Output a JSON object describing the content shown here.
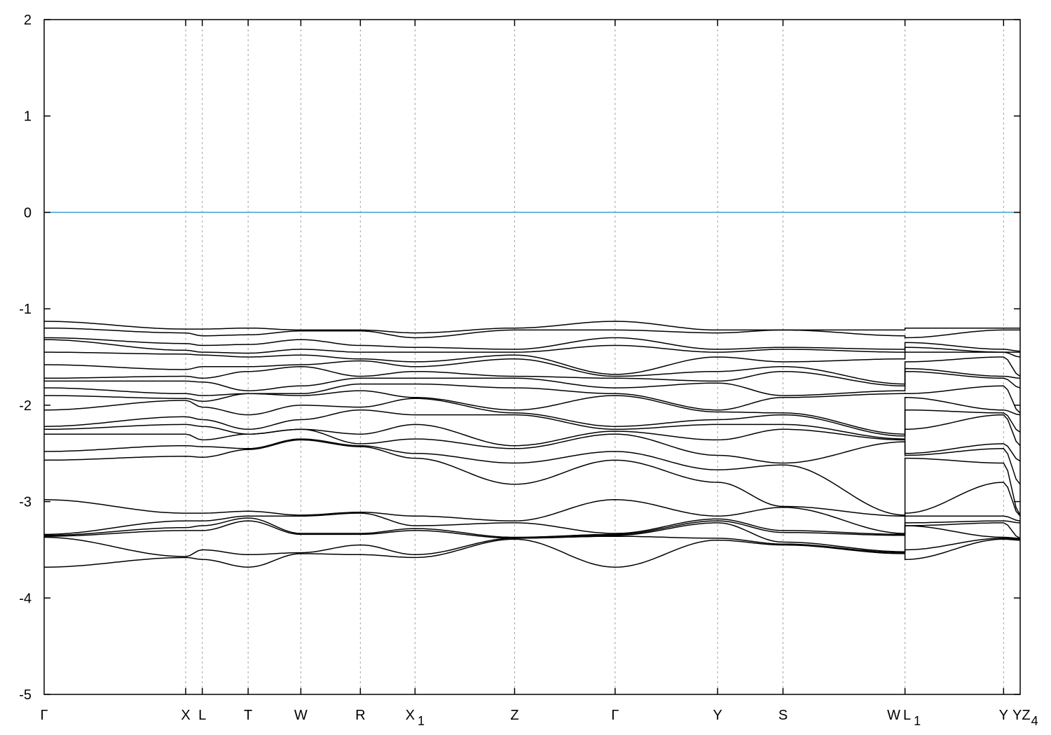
{
  "chart_data": {
    "type": "line",
    "title": "",
    "xlabel": "",
    "ylabel": "",
    "ylim": [
      -5,
      2
    ],
    "yticks": [
      -5,
      -4,
      -3,
      -2,
      -1,
      0,
      1,
      2
    ],
    "xlim": [
      0,
      1
    ],
    "grid": "vertical dashed lines at high-symmetry points",
    "legend": "none",
    "colors": {
      "bands": "#000000",
      "fermi_line": "#3a9fd6",
      "grid": "#a0a0a0"
    },
    "reference_line": {
      "y": 0
    },
    "high_symmetry_points": [
      {
        "k": 0.0,
        "label": "Γ",
        "sub": ""
      },
      {
        "k": 0.145,
        "label": "X",
        "sub": ""
      },
      {
        "k": 0.162,
        "label": "L",
        "sub": ""
      },
      {
        "k": 0.209,
        "label": "T",
        "sub": ""
      },
      {
        "k": 0.263,
        "label": "W",
        "sub": ""
      },
      {
        "k": 0.324,
        "label": "R",
        "sub": ""
      },
      {
        "k": 0.38,
        "label": "X",
        "sub": "1"
      },
      {
        "k": 0.482,
        "label": "Z",
        "sub": ""
      },
      {
        "k": 0.585,
        "label": "Γ",
        "sub": ""
      },
      {
        "k": 0.69,
        "label": "Y",
        "sub": ""
      },
      {
        "k": 0.757,
        "label": "S",
        "sub": ""
      },
      {
        "k": 0.882,
        "label": "W",
        "sub": ""
      },
      {
        "k": 0.882,
        "label": "L",
        "sub": "1"
      },
      {
        "k": 0.983,
        "label": "Y",
        "sub": ""
      },
      {
        "k": 1.0,
        "label": "YZ",
        "sub": "4"
      }
    ],
    "band_energies_at_points": [
      [
        -1.13,
        -1.2,
        -1.3,
        -1.32,
        -1.45,
        -1.58,
        -1.72,
        -1.75,
        -1.82,
        -1.9,
        -2.05,
        -2.22,
        -2.25,
        -2.3,
        -2.48,
        -2.57,
        -2.98,
        -3.34,
        -3.35,
        -3.36,
        -3.37,
        -3.68
      ],
      [
        -1.21,
        -1.25,
        -1.36,
        -1.43,
        -1.47,
        -1.63,
        -1.7,
        -1.75,
        -1.88,
        -1.93,
        -1.95,
        -2.12,
        -2.2,
        -2.3,
        -2.42,
        -2.53,
        -3.12,
        -3.2,
        -3.27,
        -3.3,
        -3.57,
        -3.58
      ],
      [
        -1.21,
        -1.28,
        -1.38,
        -1.45,
        -1.48,
        -1.6,
        -1.72,
        -1.76,
        -1.9,
        -1.96,
        -2.02,
        -2.15,
        -2.22,
        -2.36,
        -2.43,
        -2.54,
        -3.12,
        -3.2,
        -3.25,
        -3.3,
        -3.5,
        -3.6
      ],
      [
        -1.2,
        -1.27,
        -1.37,
        -1.46,
        -1.5,
        -1.6,
        -1.65,
        -1.85,
        -1.88,
        -1.88,
        -2.1,
        -2.25,
        -2.3,
        -2.3,
        -2.45,
        -2.46,
        -3.1,
        -3.15,
        -3.17,
        -3.2,
        -3.55,
        -3.68
      ],
      [
        -1.22,
        -1.23,
        -1.32,
        -1.42,
        -1.48,
        -1.58,
        -1.6,
        -1.8,
        -1.88,
        -1.9,
        -2.0,
        -2.15,
        -2.25,
        -2.25,
        -2.35,
        -2.36,
        -3.14,
        -3.15,
        -3.33,
        -3.34,
        -3.53,
        -3.54
      ],
      [
        -1.22,
        -1.23,
        -1.38,
        -1.45,
        -1.52,
        -1.54,
        -1.7,
        -1.72,
        -1.78,
        -1.85,
        -2.02,
        -2.05,
        -2.3,
        -2.4,
        -2.42,
        -2.43,
        -3.11,
        -3.12,
        -3.33,
        -3.34,
        -3.45,
        -3.55
      ],
      [
        -1.25,
        -1.3,
        -1.4,
        -1.45,
        -1.55,
        -1.6,
        -1.65,
        -1.72,
        -1.78,
        -1.92,
        -1.93,
        -2.1,
        -2.2,
        -2.35,
        -2.5,
        -2.55,
        -3.15,
        -3.25,
        -3.28,
        -3.3,
        -3.55,
        -3.58
      ],
      [
        -1.2,
        -1.22,
        -1.42,
        -1.45,
        -1.48,
        -1.52,
        -1.7,
        -1.72,
        -1.82,
        -2.05,
        -2.08,
        -2.1,
        -2.42,
        -2.45,
        -2.6,
        -2.82,
        -3.2,
        -3.22,
        -3.37,
        -3.38,
        -3.38,
        -3.39
      ],
      [
        -1.13,
        -1.22,
        -1.3,
        -1.38,
        -1.68,
        -1.7,
        -1.72,
        -1.82,
        -1.88,
        -1.9,
        -2.22,
        -2.25,
        -2.27,
        -2.3,
        -2.48,
        -2.57,
        -2.98,
        -3.33,
        -3.34,
        -3.35,
        -3.36,
        -3.68
      ],
      [
        -1.22,
        -1.25,
        -1.42,
        -1.45,
        -1.5,
        -1.65,
        -1.75,
        -1.77,
        -2.05,
        -2.07,
        -2.15,
        -2.2,
        -2.36,
        -2.52,
        -2.67,
        -2.8,
        -3.15,
        -3.18,
        -3.2,
        -3.22,
        -3.38,
        -3.4
      ],
      [
        -1.22,
        -1.22,
        -1.4,
        -1.42,
        -1.55,
        -1.6,
        -1.65,
        -1.9,
        -1.92,
        -2.08,
        -2.1,
        -2.2,
        -2.25,
        -2.6,
        -2.62,
        -3.05,
        -3.06,
        -3.3,
        -3.32,
        -3.42,
        -3.44,
        -3.45
      ],
      [
        -1.22,
        -1.28,
        -1.42,
        -1.45,
        -1.52,
        -1.78,
        -1.8,
        -1.85,
        -1.88,
        -2.3,
        -2.32,
        -2.35,
        -2.36,
        -2.38,
        -3.14,
        -3.15,
        -3.33,
        -3.34,
        -3.35,
        -3.52,
        -3.53,
        -3.54
      ],
      [
        -1.2,
        -1.3,
        -1.35,
        -1.4,
        -1.45,
        -1.55,
        -1.62,
        -1.65,
        -1.88,
        -1.92,
        -2.05,
        -2.25,
        -2.5,
        -2.52,
        -2.55,
        -3.12,
        -3.15,
        -3.22,
        -3.25,
        -3.25,
        -3.5,
        -3.6
      ],
      [
        -1.2,
        -1.22,
        -1.42,
        -1.45,
        -1.45,
        -1.5,
        -1.7,
        -1.72,
        -1.8,
        -2.05,
        -2.08,
        -2.1,
        -2.4,
        -2.45,
        -2.6,
        -2.8,
        -3.15,
        -3.2,
        -3.22,
        -3.37,
        -3.38,
        -3.39
      ],
      [
        -1.2,
        -1.22,
        -1.44,
        -1.45,
        -1.5,
        -1.7,
        -1.72,
        -1.82,
        -2.08,
        -2.1,
        -2.28,
        -2.42,
        -2.58,
        -2.82,
        -3.14,
        -3.15,
        -3.2,
        -3.22,
        -3.38,
        -3.38,
        -3.39,
        -3.4
      ]
    ]
  }
}
